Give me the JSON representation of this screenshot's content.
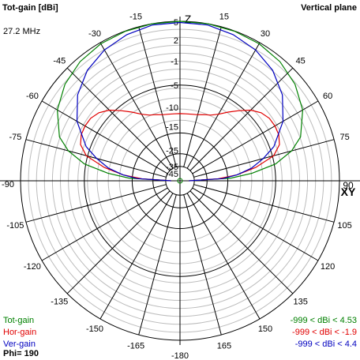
{
  "header": {
    "title": "Tot-gain [dBi]",
    "plane": "Vertical plane",
    "frequency": "27.2 MHz"
  },
  "legend": {
    "items": [
      {
        "label": "Tot-gain",
        "color": "#008000",
        "range": "-999 < dBi < 4.53"
      },
      {
        "label": "Hor-gain",
        "color": "#e00000",
        "range": "-999 < dBi < -1.9"
      },
      {
        "label": "Ver-gain",
        "color": "#0000c0",
        "range": "-999 < dBi < 4.4"
      }
    ],
    "phi": "Phi= 190"
  },
  "chart_data": {
    "type": "polar",
    "angle_labels": [
      {
        "deg": 0,
        "text": "Z"
      },
      {
        "deg": 15,
        "text": "15"
      },
      {
        "deg": 30,
        "text": "30"
      },
      {
        "deg": 45,
        "text": "45"
      },
      {
        "deg": 60,
        "text": "60"
      },
      {
        "deg": 75,
        "text": "75"
      },
      {
        "deg": 90,
        "text": "90"
      },
      {
        "deg": 105,
        "text": "105"
      },
      {
        "deg": 120,
        "text": "120"
      },
      {
        "deg": 135,
        "text": "135"
      },
      {
        "deg": 150,
        "text": "150"
      },
      {
        "deg": 165,
        "text": "165"
      },
      {
        "deg": 180,
        "text": "-180"
      },
      {
        "deg": -165,
        "text": "-165"
      },
      {
        "deg": -150,
        "text": "-150"
      },
      {
        "deg": -135,
        "text": "-135"
      },
      {
        "deg": -120,
        "text": "-120"
      },
      {
        "deg": -105,
        "text": "-105"
      },
      {
        "deg": -90,
        "text": "-90"
      },
      {
        "deg": -75,
        "text": "-75"
      },
      {
        "deg": -60,
        "text": "-60"
      },
      {
        "deg": -45,
        "text": "-45"
      },
      {
        "deg": -30,
        "text": "-30"
      },
      {
        "deg": -15,
        "text": "-15"
      }
    ],
    "axis_label_xy": "XY",
    "radial_labels": [
      {
        "dbi": 5,
        "text": "5"
      },
      {
        "dbi": 2,
        "text": "2"
      },
      {
        "dbi": -1,
        "text": "-1"
      },
      {
        "dbi": -5,
        "text": "-5"
      },
      {
        "dbi": -10,
        "text": "-10"
      },
      {
        "dbi": -15,
        "text": "-15"
      },
      {
        "dbi": -25,
        "text": "-25"
      },
      {
        "dbi": -35,
        "text": "-35"
      },
      {
        "dbi": -45,
        "text": "-45"
      }
    ],
    "series": [
      {
        "name": "Tot-gain",
        "color": "#008000",
        "points": [
          [
            -90,
            -45
          ],
          [
            -87,
            -15
          ],
          [
            -84,
            -9
          ],
          [
            -80,
            -4
          ],
          [
            -75,
            -1
          ],
          [
            -70,
            0.8
          ],
          [
            -60,
            2.5
          ],
          [
            -50,
            3.5
          ],
          [
            -40,
            4.1
          ],
          [
            -30,
            4.4
          ],
          [
            -20,
            4.5
          ],
          [
            -10,
            4.53
          ],
          [
            0,
            4.53
          ],
          [
            10,
            4.53
          ],
          [
            20,
            4.5
          ],
          [
            30,
            4.4
          ],
          [
            40,
            4.1
          ],
          [
            50,
            3.5
          ],
          [
            60,
            2.5
          ],
          [
            70,
            0.8
          ],
          [
            75,
            -1
          ],
          [
            80,
            -4
          ],
          [
            84,
            -9
          ],
          [
            87,
            -15
          ],
          [
            90,
            -45
          ]
        ]
      },
      {
        "name": "Hor-gain",
        "color": "#e00000",
        "points": [
          [
            -90,
            -45
          ],
          [
            -87,
            -20
          ],
          [
            -84,
            -13
          ],
          [
            -80,
            -8
          ],
          [
            -75,
            -4
          ],
          [
            -70,
            -2.5
          ],
          [
            -65,
            -2
          ],
          [
            -60,
            -1.9
          ],
          [
            -55,
            -2
          ],
          [
            -50,
            -2.5
          ],
          [
            -45,
            -3.5
          ],
          [
            -40,
            -5
          ],
          [
            -35,
            -6.5
          ],
          [
            -30,
            -8
          ],
          [
            -25,
            -9
          ],
          [
            -20,
            -9.5
          ],
          [
            -15,
            -10
          ],
          [
            -10,
            -10.2
          ],
          [
            -5,
            -10.3
          ],
          [
            0,
            -10.3
          ],
          [
            5,
            -10.3
          ],
          [
            10,
            -10.2
          ],
          [
            15,
            -10
          ],
          [
            20,
            -9.5
          ],
          [
            25,
            -9
          ],
          [
            30,
            -8
          ],
          [
            35,
            -6.5
          ],
          [
            40,
            -5
          ],
          [
            45,
            -3.5
          ],
          [
            50,
            -2.5
          ],
          [
            55,
            -2
          ],
          [
            60,
            -1.9
          ],
          [
            65,
            -2
          ],
          [
            70,
            -2.5
          ],
          [
            75,
            -4
          ],
          [
            80,
            -8
          ],
          [
            84,
            -13
          ],
          [
            87,
            -20
          ],
          [
            90,
            -45
          ]
        ]
      },
      {
        "name": "Ver-gain",
        "color": "#0000c0",
        "points": [
          [
            -90,
            -45
          ],
          [
            -87,
            -18
          ],
          [
            -84,
            -13
          ],
          [
            -80,
            -9
          ],
          [
            -75,
            -6
          ],
          [
            -70,
            -3.5
          ],
          [
            -60,
            -0.5
          ],
          [
            -50,
            1.5
          ],
          [
            -40,
            2.8
          ],
          [
            -30,
            3.6
          ],
          [
            -20,
            4.1
          ],
          [
            -10,
            4.4
          ],
          [
            0,
            4.4
          ],
          [
            10,
            4.4
          ],
          [
            20,
            4.1
          ],
          [
            30,
            3.6
          ],
          [
            40,
            2.8
          ],
          [
            50,
            1.5
          ],
          [
            60,
            -0.5
          ],
          [
            70,
            -3.5
          ],
          [
            75,
            -6
          ],
          [
            80,
            -9
          ],
          [
            84,
            -13
          ],
          [
            87,
            -18
          ],
          [
            90,
            -45
          ]
        ]
      }
    ]
  }
}
